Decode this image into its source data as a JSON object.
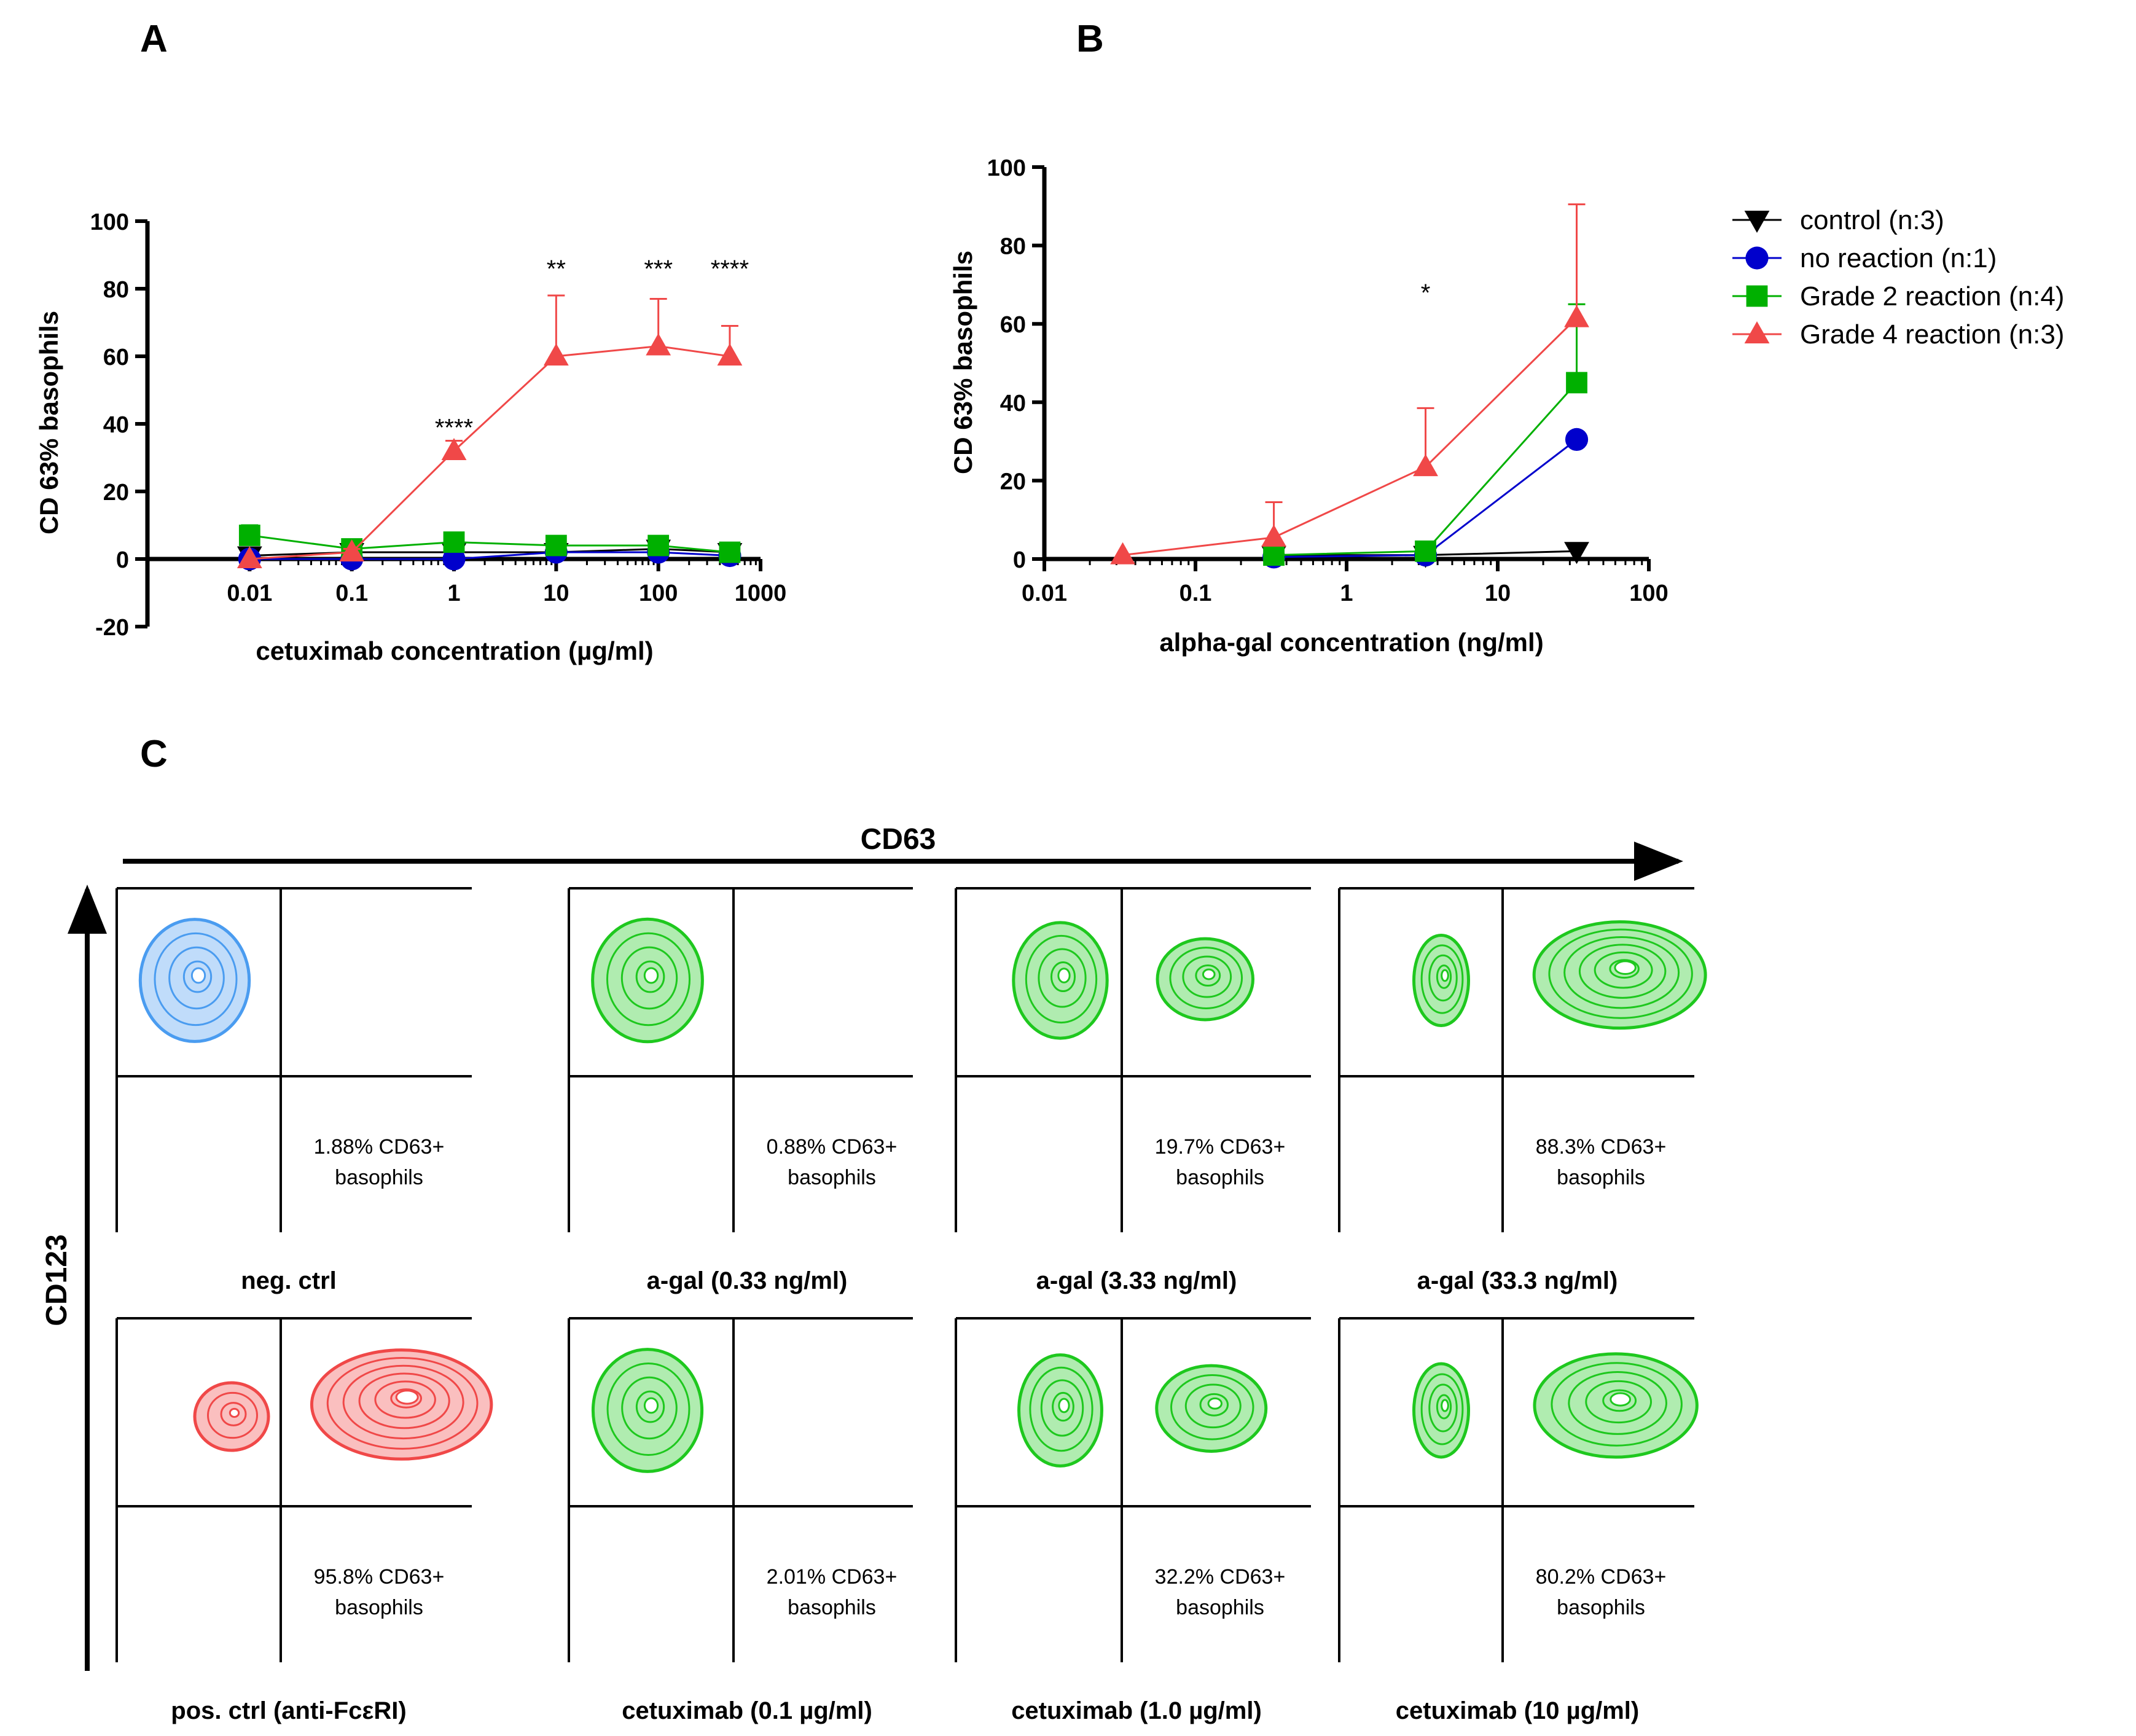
{
  "panel_labels": {
    "a": "A",
    "b": "B",
    "c": "C"
  },
  "colors": {
    "control": "#000000",
    "no_reaction": "#0000cc",
    "grade2": "#00b000",
    "grade4": "#f04848",
    "neg_ctrl_contour": "#4a9cf0",
    "pos_ctrl_contour": "#f04848",
    "sample_contour": "#1ec81e"
  },
  "legend": [
    {
      "key": "control",
      "label": "control (n:3)",
      "marker": "tri-down"
    },
    {
      "key": "no_reaction",
      "label": "no reaction (n:1)",
      "marker": "circle"
    },
    {
      "key": "grade2",
      "label": "Grade 2 reaction (n:4)",
      "marker": "square"
    },
    {
      "key": "grade4",
      "label": "Grade 4 reaction (n:3)",
      "marker": "tri-up"
    }
  ],
  "chart_data": [
    {
      "id": "A",
      "type": "line",
      "xscale": "log",
      "xlabel": "cetuximab concentration (µg/ml)",
      "ylabel": "CD 63% basophils",
      "xlim": [
        0.001,
        1000
      ],
      "ylim": [
        -20,
        100
      ],
      "xticks": [
        0.01,
        0.1,
        1,
        10,
        100,
        1000
      ],
      "xtick_labels": [
        "0.01",
        "0.1",
        "1",
        "10",
        "100",
        "1000"
      ],
      "yticks": [
        -20,
        0,
        20,
        40,
        60,
        80,
        100
      ],
      "ytick_labels": [
        "-20",
        "0",
        "20",
        "40",
        "60",
        "80",
        "100"
      ],
      "x": [
        0.01,
        0.1,
        1,
        10,
        100,
        500
      ],
      "series": [
        {
          "key": "control",
          "values": [
            1,
            2,
            2,
            2,
            3,
            2
          ],
          "err": [
            1,
            1,
            1,
            1,
            1,
            1
          ]
        },
        {
          "key": "no_reaction",
          "values": [
            0,
            0,
            0,
            2,
            2,
            1
          ],
          "err": [
            0,
            0,
            0,
            0,
            0,
            0
          ]
        },
        {
          "key": "grade2",
          "values": [
            7,
            3,
            5,
            4,
            4,
            2
          ],
          "err": [
            3,
            1,
            2,
            1,
            1,
            1
          ]
        },
        {
          "key": "grade4",
          "values": [
            0,
            2,
            32,
            60,
            63,
            60
          ],
          "err": [
            0,
            1,
            3,
            18,
            14,
            9
          ]
        }
      ],
      "annotations": [
        {
          "x": 1,
          "y": 39,
          "text": "****"
        },
        {
          "x": 10,
          "y": 86,
          "text": "**"
        },
        {
          "x": 100,
          "y": 86,
          "text": "***"
        },
        {
          "x": 500,
          "y": 86,
          "text": "****"
        }
      ]
    },
    {
      "id": "B",
      "type": "line",
      "xscale": "log",
      "xlabel": "alpha-gal concentration (ng/ml)",
      "ylabel": "CD 63% basophils",
      "xlim": [
        0.01,
        100
      ],
      "ylim": [
        0,
        100
      ],
      "xticks": [
        0.01,
        0.1,
        1,
        10,
        100
      ],
      "xtick_labels": [
        "0.01",
        "0.1",
        "1",
        "10",
        "100"
      ],
      "yticks": [
        0,
        20,
        40,
        60,
        80,
        100
      ],
      "ytick_labels": [
        "0",
        "20",
        "40",
        "60",
        "80",
        "100"
      ],
      "series": [
        {
          "key": "control",
          "x": [
            0.33,
            3.33,
            33.3
          ],
          "values": [
            1,
            1,
            2
          ],
          "err": [
            1,
            1,
            2
          ]
        },
        {
          "key": "no_reaction",
          "x": [
            0.33,
            3.33,
            33.3
          ],
          "values": [
            0.5,
            1,
            30.5
          ],
          "err": [
            0,
            0,
            0
          ]
        },
        {
          "key": "grade2",
          "x": [
            0.33,
            3.33,
            33.3
          ],
          "values": [
            1,
            2,
            45
          ],
          "err": [
            1,
            1,
            20
          ]
        },
        {
          "key": "grade4",
          "x": [
            0.033,
            0.33,
            3.33,
            33.3
          ],
          "values": [
            1,
            5.5,
            23.5,
            61.5
          ],
          "err": [
            0,
            9,
            15,
            29
          ]
        }
      ],
      "annotations": [
        {
          "x": 3.33,
          "y": 68,
          "text": "*"
        }
      ]
    }
  ],
  "flow": {
    "x_axis_label": "CD63",
    "y_axis_label": "CD123",
    "plots": [
      {
        "id": "neg",
        "title": "neg. ctrl",
        "pct": "1.88% CD63+",
        "pct_sub": "basophils",
        "color_key": "neg_ctrl_contour",
        "cd63_pos_fraction": 0.0188
      },
      {
        "id": "agal033",
        "title": "a-gal  (0.33 ng/ml)",
        "pct": "0.88% CD63+",
        "pct_sub": "basophils",
        "color_key": "sample_contour",
        "cd63_pos_fraction": 0.0088
      },
      {
        "id": "agal333",
        "title": "a-gal  (3.33 ng/ml)",
        "pct": "19.7% CD63+",
        "pct_sub": "basophils",
        "color_key": "sample_contour",
        "cd63_pos_fraction": 0.197
      },
      {
        "id": "agal333b",
        "title": "a-gal  (33.3 ng/ml)",
        "pct": "88.3% CD63+",
        "pct_sub": "basophils",
        "color_key": "sample_contour",
        "cd63_pos_fraction": 0.883
      },
      {
        "id": "pos",
        "title": "pos. ctrl (anti-FcεRI)",
        "pct": "95.8% CD63+",
        "pct_sub": "basophils",
        "color_key": "pos_ctrl_contour",
        "cd63_pos_fraction": 0.958
      },
      {
        "id": "cet01",
        "title": "cetuximab (0.1 µg/ml)",
        "pct": "2.01% CD63+",
        "pct_sub": "basophils",
        "color_key": "sample_contour",
        "cd63_pos_fraction": 0.0201
      },
      {
        "id": "cet1",
        "title": "cetuximab (1.0 µg/ml)",
        "pct": "32.2% CD63+",
        "pct_sub": "basophils",
        "color_key": "sample_contour",
        "cd63_pos_fraction": 0.322
      },
      {
        "id": "cet10",
        "title": "cetuximab (10 µg/ml)",
        "pct": "80.2% CD63+",
        "pct_sub": "basophils",
        "color_key": "sample_contour",
        "cd63_pos_fraction": 0.802
      }
    ]
  }
}
